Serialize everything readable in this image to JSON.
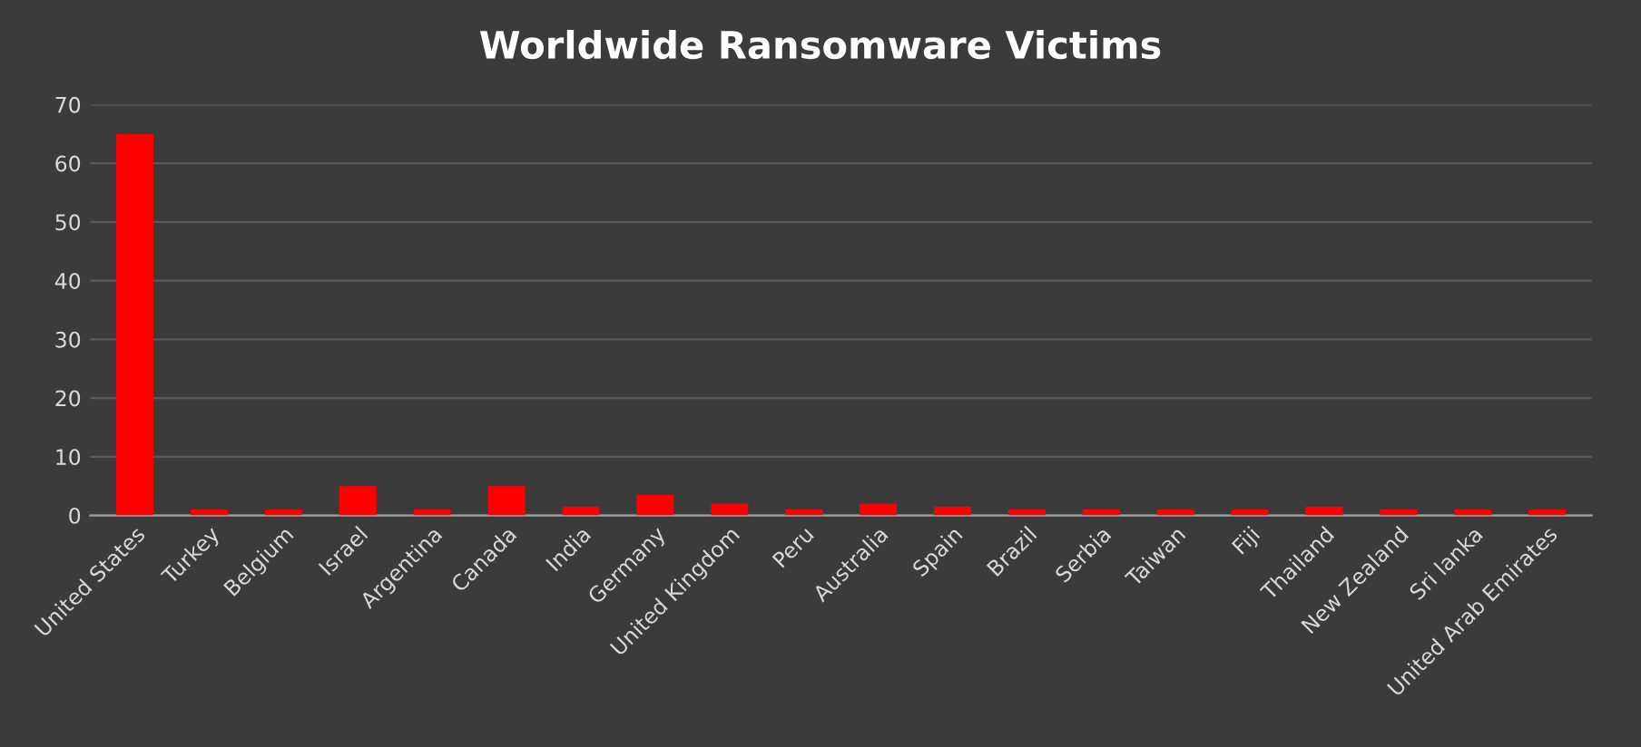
{
  "chart_data": {
    "type": "bar",
    "title": "Worldwide Ransomware Victims",
    "categories": [
      "United States",
      "Turkey",
      "Belgium",
      "Israel",
      "Argentina",
      "Canada",
      "India",
      "Germany",
      "United Kingdom",
      "Peru",
      "Australia",
      "Spain",
      "Brazil",
      "Serbia",
      "Taiwan",
      "Fiji",
      "Thailand",
      "New Zealand",
      "Sri lanka",
      "United Arab Emirates"
    ],
    "values": [
      65,
      1,
      1,
      5,
      1,
      5,
      1.5,
      3.5,
      2,
      1,
      2,
      1.5,
      1,
      1,
      1,
      1,
      1.5,
      1,
      1,
      1
    ],
    "color": "#ff0000",
    "ylim": [
      0,
      70
    ],
    "yticks": [
      0,
      10,
      20,
      30,
      40,
      50,
      60,
      70
    ],
    "grid": "y"
  }
}
